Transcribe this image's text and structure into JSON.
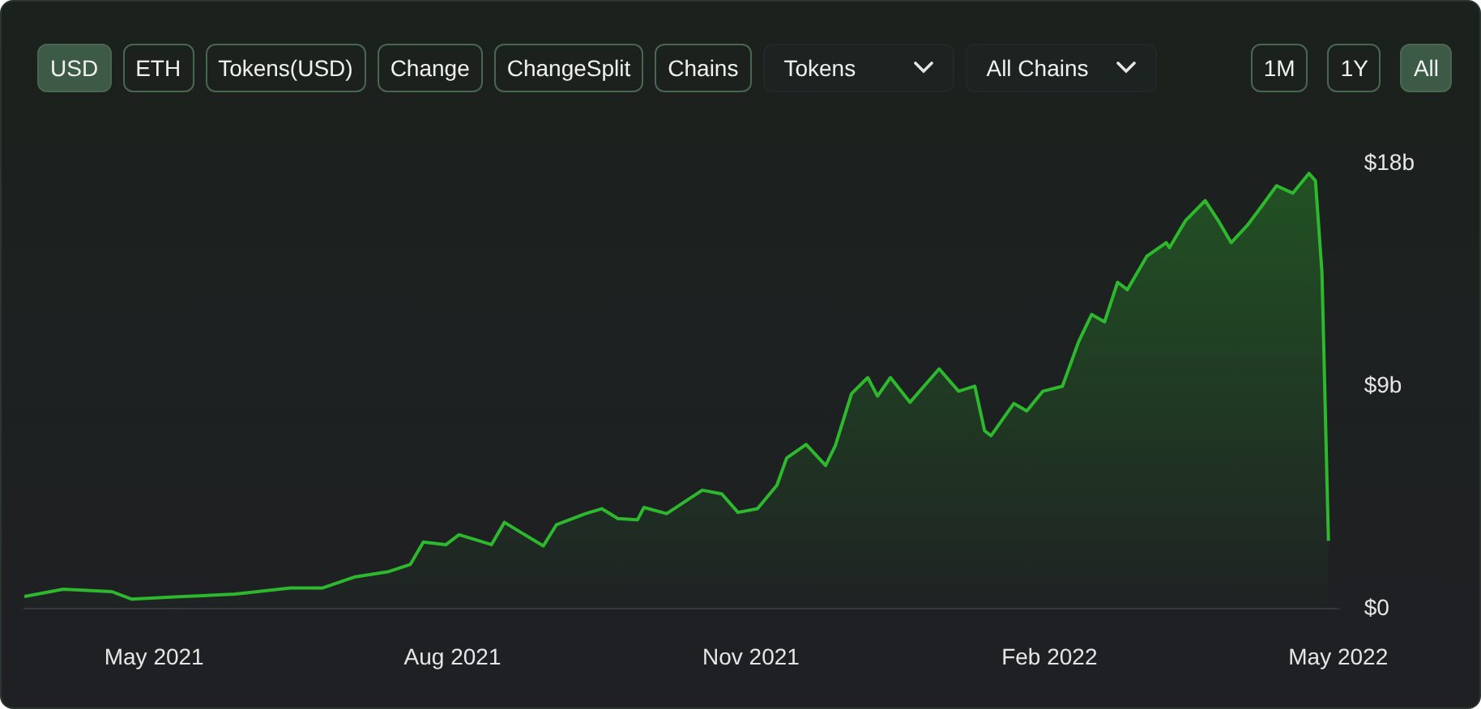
{
  "chart_data": {
    "type": "area",
    "color": "#2eb82e",
    "annotations": [
      "USD",
      "ETH",
      "Tokens(USD)",
      "Change",
      "ChangeSplit",
      "Chains",
      "Tokens",
      "All Chains",
      "1M",
      "1Y",
      "All"
    ],
    "x": [
      "2021-03-22",
      "2021-04-03",
      "2021-04-18",
      "2021-04-24",
      "2021-05-10",
      "2021-05-26",
      "2021-06-12",
      "2021-06-22",
      "2021-07-02",
      "2021-07-12",
      "2021-07-19",
      "2021-07-23",
      "2021-07-30",
      "2021-08-03",
      "2021-08-13",
      "2021-08-17",
      "2021-08-22",
      "2021-08-29",
      "2021-09-02",
      "2021-09-11",
      "2021-09-16",
      "2021-09-21",
      "2021-09-27",
      "2021-09-29",
      "2021-10-06",
      "2021-10-17",
      "2021-10-23",
      "2021-10-28",
      "2021-11-03",
      "2021-11-09",
      "2021-11-12",
      "2021-11-18",
      "2021-11-24",
      "2021-11-27",
      "2021-12-02",
      "2021-12-07",
      "2021-12-10",
      "2021-12-14",
      "2021-12-20",
      "2021-12-29",
      "2022-01-04",
      "2022-01-09",
      "2022-01-12",
      "2022-01-14",
      "2022-01-21",
      "2022-01-25",
      "2022-01-30",
      "2022-02-05",
      "2022-02-10",
      "2022-02-14",
      "2022-02-18",
      "2022-02-22",
      "2022-02-25",
      "2022-03-03",
      "2022-03-09",
      "2022-03-10",
      "2022-03-15",
      "2022-03-21",
      "2022-03-25",
      "2022-03-29",
      "2022-04-03",
      "2022-04-07",
      "2022-04-12",
      "2022-04-17",
      "2022-04-22",
      "2022-04-24",
      "2022-04-26",
      "2022-04-28"
    ],
    "values": [
      0.5,
      0.8,
      0.7,
      0.4,
      0.5,
      0.6,
      0.85,
      0.85,
      1.3,
      1.5,
      1.8,
      2.7,
      2.6,
      3.0,
      2.6,
      3.5,
      3.1,
      2.55,
      3.4,
      3.85,
      4.05,
      3.65,
      3.6,
      4.1,
      3.85,
      4.8,
      4.65,
      3.9,
      4.05,
      5.0,
      6.1,
      6.65,
      5.8,
      6.6,
      8.7,
      9.35,
      8.6,
      9.35,
      8.35,
      9.7,
      8.8,
      9.0,
      7.2,
      7.0,
      8.3,
      8.0,
      8.8,
      9.0,
      10.8,
      11.9,
      11.6,
      13.2,
      12.9,
      14.25,
      14.8,
      14.6,
      15.7,
      16.5,
      15.7,
      14.8,
      15.5,
      16.2,
      17.1,
      16.8,
      17.6,
      17.3,
      13.6,
      2.75
    ],
    "xticks": [
      {
        "value": "2021-05-01",
        "label": "May 2021"
      },
      {
        "value": "2021-08-01",
        "label": "Aug 2021"
      },
      {
        "value": "2021-11-01",
        "label": "Nov 2021"
      },
      {
        "value": "2022-02-01",
        "label": "Feb 2022"
      },
      {
        "value": "2022-05-01",
        "label": "May 2022"
      }
    ],
    "xlim": [
      "2021-03-22",
      "2022-05-01"
    ],
    "ylim": [
      0,
      18
    ],
    "yticks": [
      {
        "value": 0,
        "label": "$0"
      },
      {
        "value": 9,
        "label": "$9b"
      },
      {
        "value": 18,
        "label": "$18b"
      }
    ],
    "grid": false,
    "legend": false
  }
}
